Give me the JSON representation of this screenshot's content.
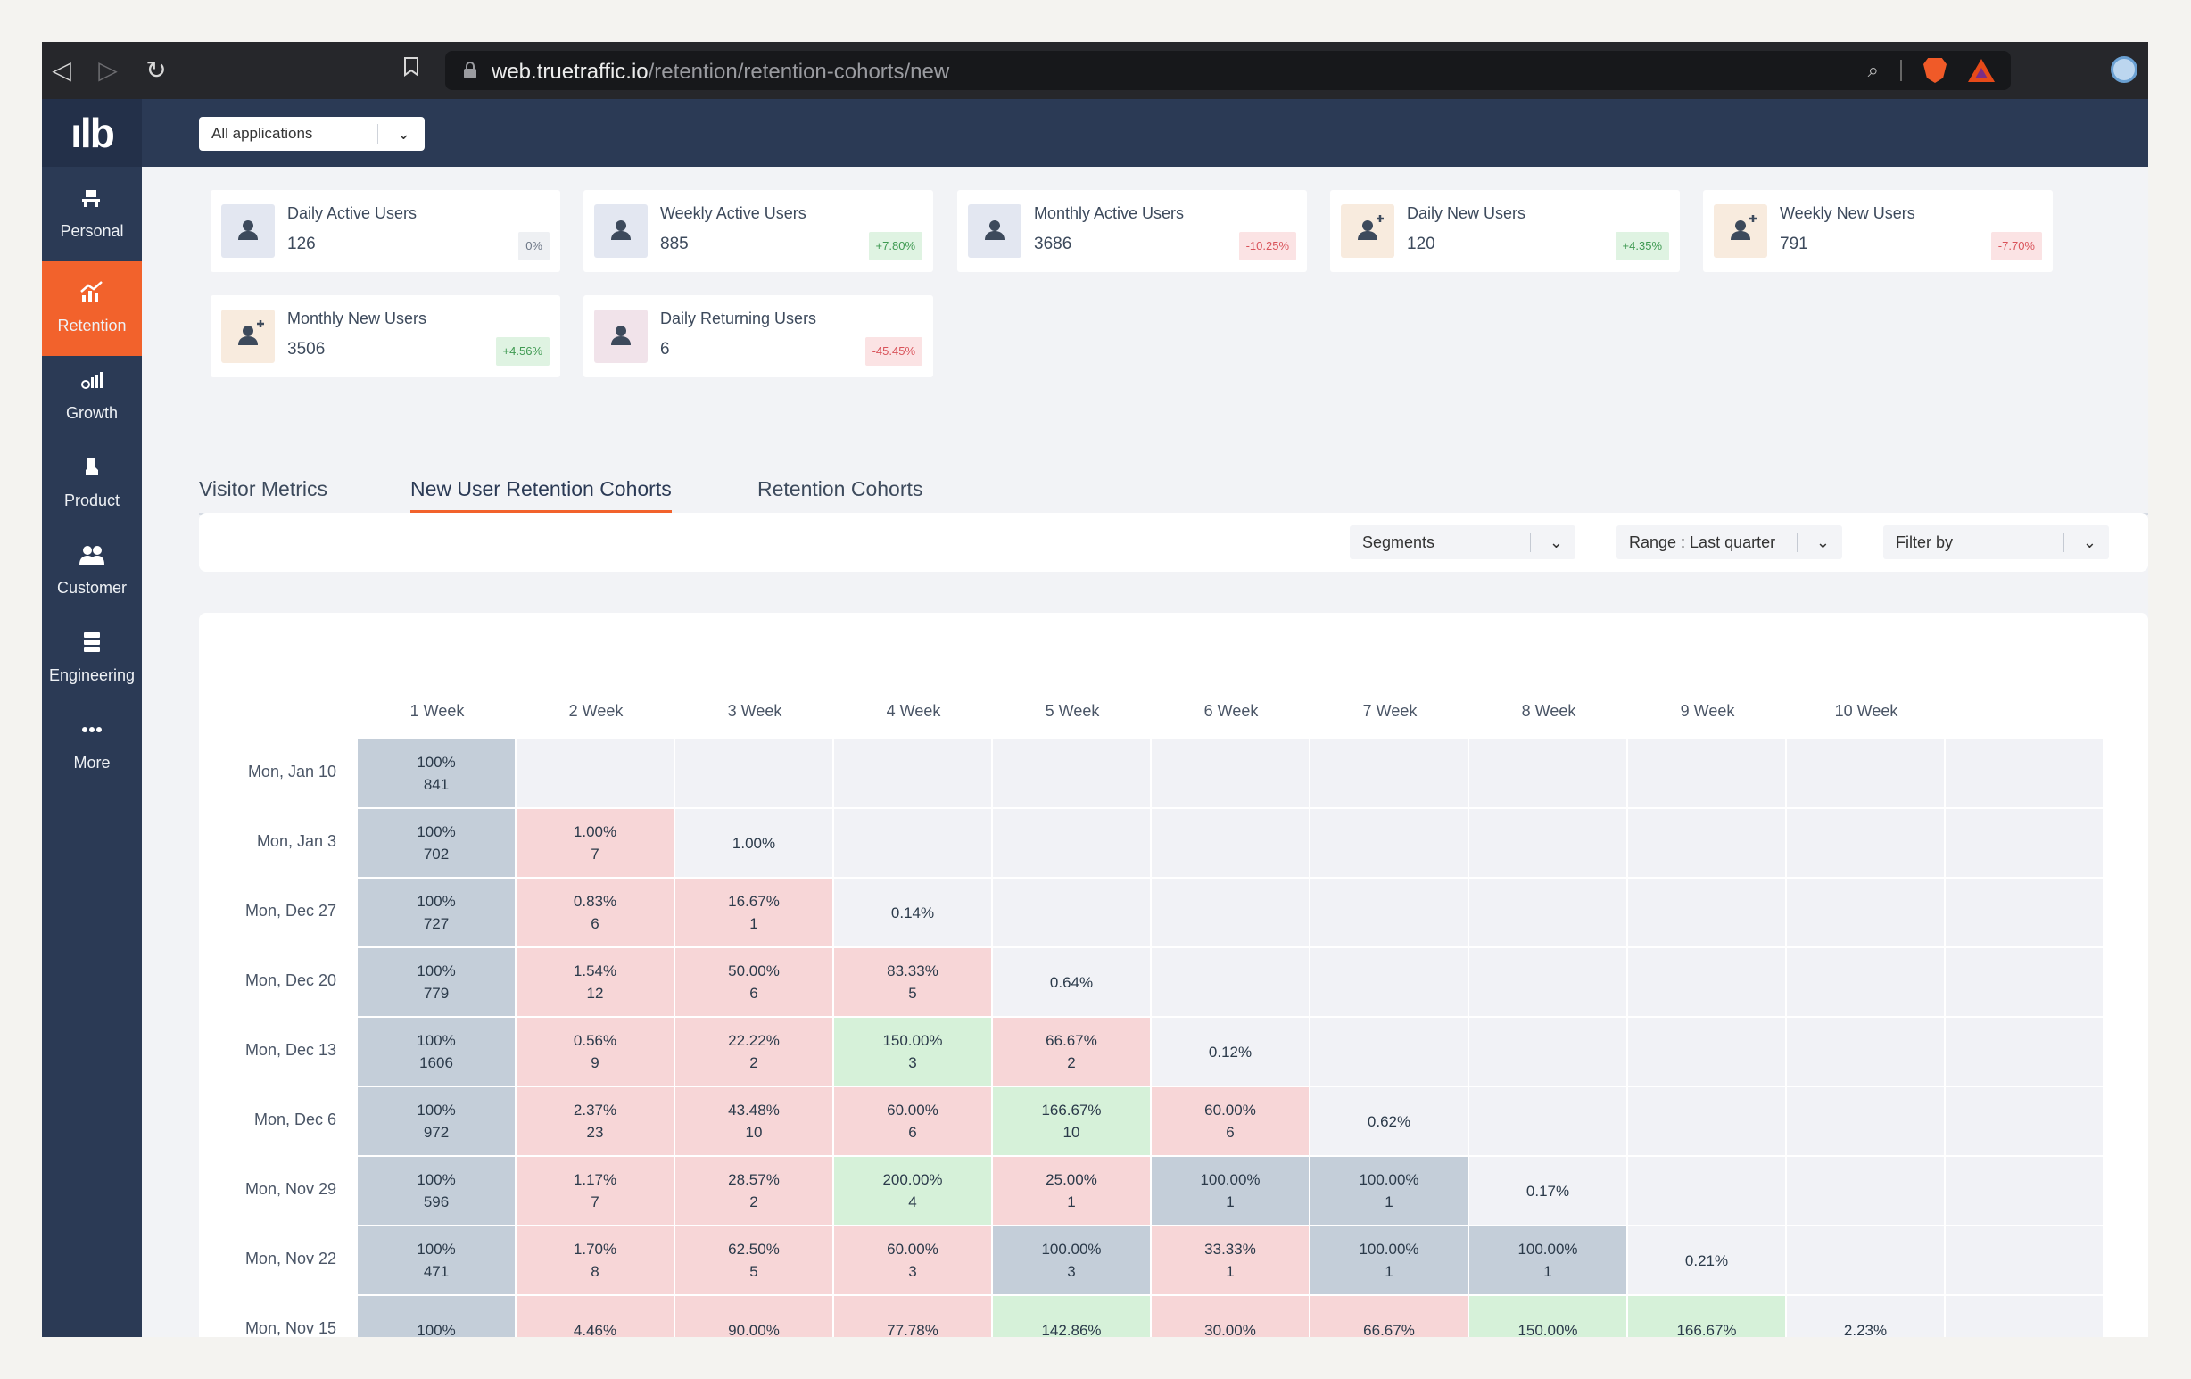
{
  "browser": {
    "url_host": "web.truetraffic.io",
    "url_path": "/retention/retention-cohorts/new"
  },
  "app": {
    "logo": "ılb",
    "app_selector": "All applications"
  },
  "sidebar": {
    "items": [
      {
        "label": "Personal",
        "icon": "personal-icon"
      },
      {
        "label": "Retention",
        "icon": "retention-chart-icon",
        "active": true
      },
      {
        "label": "Growth",
        "icon": "growth-icon"
      },
      {
        "label": "Product",
        "icon": "product-icon"
      },
      {
        "label": "Customer",
        "icon": "customer-icon"
      },
      {
        "label": "Engineering",
        "icon": "engineering-icon"
      },
      {
        "label": "More",
        "icon": "more-icon"
      }
    ]
  },
  "kpis": [
    {
      "label": "Daily Active Users",
      "value": "126",
      "change": "0%",
      "trend": "neutral",
      "icon": "user-icon",
      "icon_bg": "#e3e7f1"
    },
    {
      "label": "Weekly Active Users",
      "value": "885",
      "change": "+7.80%",
      "trend": "pos",
      "icon": "user-icon",
      "icon_bg": "#e3e7f1"
    },
    {
      "label": "Monthly Active Users",
      "value": "3686",
      "change": "-10.25%",
      "trend": "neg",
      "icon": "user-icon",
      "icon_bg": "#e3e7f1"
    },
    {
      "label": "Daily New Users",
      "value": "120",
      "change": "+4.35%",
      "trend": "pos",
      "icon": "user-plus-icon",
      "icon_bg": "#f8ebde"
    },
    {
      "label": "Weekly New Users",
      "value": "791",
      "change": "-7.70%",
      "trend": "neg",
      "icon": "user-plus-icon",
      "icon_bg": "#f8ebde"
    },
    {
      "label": "Monthly New Users",
      "value": "3506",
      "change": "+4.56%",
      "trend": "pos",
      "icon": "user-plus-icon",
      "icon_bg": "#f8ebde"
    },
    {
      "label": "Daily Returning Users",
      "value": "6",
      "change": "-45.45%",
      "trend": "neg",
      "icon": "user-icon",
      "icon_bg": "#f1e3ea"
    }
  ],
  "tabs": [
    {
      "label": "Visitor Metrics",
      "active": false
    },
    {
      "label": "New User Retention Cohorts",
      "active": true
    },
    {
      "label": "Retention Cohorts",
      "active": false
    }
  ],
  "filters": {
    "segments": "Segments",
    "range": "Range : Last quarter",
    "filter_by": "Filter by"
  },
  "colors": {
    "accent": "#f2622c",
    "nav_bg": "#2b3a55",
    "cell_base": "#c4ced9",
    "cell_negative": "#f7d6d7",
    "cell_positive": "#d6f1d9"
  },
  "cohort": {
    "columns": [
      "1 Week",
      "2 Week",
      "3 Week",
      "4 Week",
      "5 Week",
      "6 Week",
      "7 Week",
      "8 Week",
      "9 Week",
      "10 Week"
    ],
    "rows": [
      {
        "label": "Mon, Jan 10",
        "cells": [
          {
            "pct": "100%",
            "count": "841",
            "tone": "base"
          }
        ]
      },
      {
        "label": "Mon, Jan 3",
        "cells": [
          {
            "pct": "100%",
            "count": "702",
            "tone": "base"
          },
          {
            "pct": "1.00%",
            "count": "7",
            "tone": "neg"
          },
          {
            "pct": "1.00%",
            "count": "",
            "tone": "plain"
          }
        ]
      },
      {
        "label": "Mon, Dec 27",
        "cells": [
          {
            "pct": "100%",
            "count": "727",
            "tone": "base"
          },
          {
            "pct": "0.83%",
            "count": "6",
            "tone": "neg"
          },
          {
            "pct": "16.67%",
            "count": "1",
            "tone": "neg"
          },
          {
            "pct": "0.14%",
            "count": "",
            "tone": "plain"
          }
        ]
      },
      {
        "label": "Mon, Dec 20",
        "cells": [
          {
            "pct": "100%",
            "count": "779",
            "tone": "base"
          },
          {
            "pct": "1.54%",
            "count": "12",
            "tone": "neg"
          },
          {
            "pct": "50.00%",
            "count": "6",
            "tone": "neg"
          },
          {
            "pct": "83.33%",
            "count": "5",
            "tone": "neg"
          },
          {
            "pct": "0.64%",
            "count": "",
            "tone": "plain"
          }
        ]
      },
      {
        "label": "Mon, Dec 13",
        "cells": [
          {
            "pct": "100%",
            "count": "1606",
            "tone": "base"
          },
          {
            "pct": "0.56%",
            "count": "9",
            "tone": "neg"
          },
          {
            "pct": "22.22%",
            "count": "2",
            "tone": "neg"
          },
          {
            "pct": "150.00%",
            "count": "3",
            "tone": "pos"
          },
          {
            "pct": "66.67%",
            "count": "2",
            "tone": "neg"
          },
          {
            "pct": "0.12%",
            "count": "",
            "tone": "plain"
          }
        ]
      },
      {
        "label": "Mon, Dec 6",
        "cells": [
          {
            "pct": "100%",
            "count": "972",
            "tone": "base"
          },
          {
            "pct": "2.37%",
            "count": "23",
            "tone": "neg"
          },
          {
            "pct": "43.48%",
            "count": "10",
            "tone": "neg"
          },
          {
            "pct": "60.00%",
            "count": "6",
            "tone": "neg"
          },
          {
            "pct": "166.67%",
            "count": "10",
            "tone": "pos"
          },
          {
            "pct": "60.00%",
            "count": "6",
            "tone": "neg"
          },
          {
            "pct": "0.62%",
            "count": "",
            "tone": "plain"
          }
        ]
      },
      {
        "label": "Mon, Nov 29",
        "cells": [
          {
            "pct": "100%",
            "count": "596",
            "tone": "base"
          },
          {
            "pct": "1.17%",
            "count": "7",
            "tone": "neg"
          },
          {
            "pct": "28.57%",
            "count": "2",
            "tone": "neg"
          },
          {
            "pct": "200.00%",
            "count": "4",
            "tone": "pos"
          },
          {
            "pct": "25.00%",
            "count": "1",
            "tone": "neg"
          },
          {
            "pct": "100.00%",
            "count": "1",
            "tone": "base"
          },
          {
            "pct": "100.00%",
            "count": "1",
            "tone": "base"
          },
          {
            "pct": "0.17%",
            "count": "",
            "tone": "plain"
          }
        ]
      },
      {
        "label": "Mon, Nov 22",
        "cells": [
          {
            "pct": "100%",
            "count": "471",
            "tone": "base"
          },
          {
            "pct": "1.70%",
            "count": "8",
            "tone": "neg"
          },
          {
            "pct": "62.50%",
            "count": "5",
            "tone": "neg"
          },
          {
            "pct": "60.00%",
            "count": "3",
            "tone": "neg"
          },
          {
            "pct": "100.00%",
            "count": "3",
            "tone": "base"
          },
          {
            "pct": "33.33%",
            "count": "1",
            "tone": "neg"
          },
          {
            "pct": "100.00%",
            "count": "1",
            "tone": "base"
          },
          {
            "pct": "100.00%",
            "count": "1",
            "tone": "base"
          },
          {
            "pct": "0.21%",
            "count": "",
            "tone": "plain"
          }
        ]
      },
      {
        "label": "Mon, Nov 15",
        "cells": [
          {
            "pct": "100%",
            "count": "",
            "tone": "base"
          },
          {
            "pct": "4.46%",
            "count": "",
            "tone": "neg"
          },
          {
            "pct": "90.00%",
            "count": "",
            "tone": "neg"
          },
          {
            "pct": "77.78%",
            "count": "",
            "tone": "neg"
          },
          {
            "pct": "142.86%",
            "count": "",
            "tone": "pos"
          },
          {
            "pct": "30.00%",
            "count": "",
            "tone": "neg"
          },
          {
            "pct": "66.67%",
            "count": "",
            "tone": "neg"
          },
          {
            "pct": "150.00%",
            "count": "",
            "tone": "pos"
          },
          {
            "pct": "166.67%",
            "count": "",
            "tone": "pos"
          },
          {
            "pct": "2.23%",
            "count": "",
            "tone": "plain"
          }
        ]
      }
    ]
  }
}
